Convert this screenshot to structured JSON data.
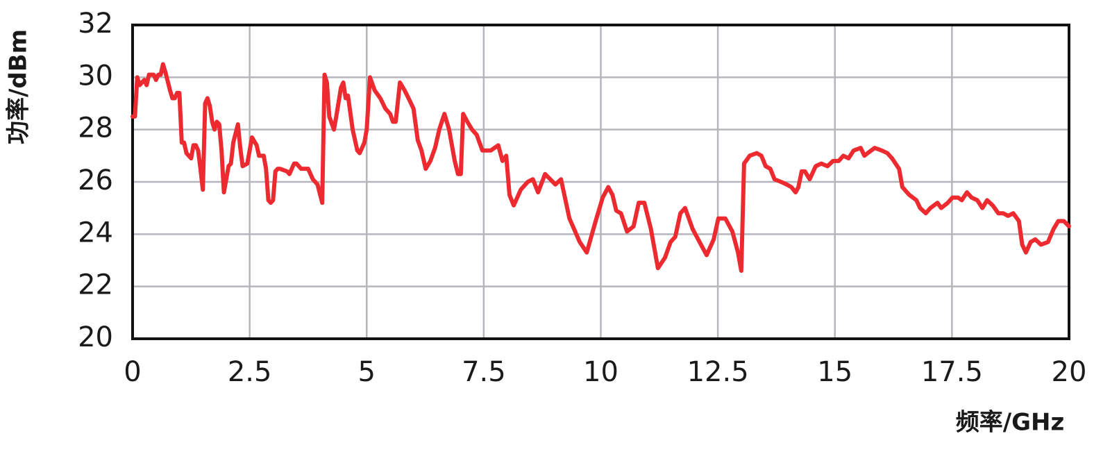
{
  "chart_data": {
    "type": "line",
    "xlabel": "频率/GHz",
    "ylabel": "功率/dBm",
    "xlim": [
      0,
      20
    ],
    "ylim": [
      20,
      32
    ],
    "xticks": [
      0,
      2.5,
      5,
      7.5,
      10,
      12.5,
      15,
      17.5,
      20
    ],
    "yticks": [
      20,
      22,
      24,
      26,
      28,
      30,
      32
    ],
    "grid": true,
    "series": [
      {
        "color": "#ee2a31",
        "x": [
          0,
          0.05,
          0.1,
          0.15,
          0.25,
          0.3,
          0.35,
          0.45,
          0.5,
          0.55,
          0.6,
          0.65,
          0.7,
          0.8,
          0.85,
          0.9,
          0.95,
          1.0,
          1.05,
          1.1,
          1.15,
          1.25,
          1.3,
          1.35,
          1.4,
          1.45,
          1.5,
          1.55,
          1.6,
          1.65,
          1.7,
          1.75,
          1.8,
          1.85,
          1.9,
          1.95,
          2.05,
          2.1,
          2.15,
          2.25,
          2.3,
          2.35,
          2.45,
          2.5,
          2.55,
          2.65,
          2.7,
          2.8,
          2.85,
          2.9,
          2.95,
          3.0,
          3.05,
          3.1,
          3.15,
          3.3,
          3.35,
          3.45,
          3.5,
          3.6,
          3.75,
          3.85,
          3.95,
          4.05,
          4.1,
          4.15,
          4.2,
          4.3,
          4.35,
          4.45,
          4.5,
          4.55,
          4.6,
          4.7,
          4.8,
          4.85,
          4.95,
          5.0,
          5.07,
          5.17,
          5.29,
          5.4,
          5.5,
          5.56,
          5.62,
          5.71,
          5.81,
          5.92,
          6.0,
          6.09,
          6.17,
          6.26,
          6.36,
          6.46,
          6.55,
          6.66,
          6.76,
          6.88,
          6.95,
          7.01,
          7.06,
          7.15,
          7.25,
          7.35,
          7.47,
          7.65,
          7.81,
          7.9,
          7.98,
          8.05,
          8.14,
          8.29,
          8.44,
          8.55,
          8.66,
          8.81,
          9.03,
          9.15,
          9.33,
          9.55,
          9.7,
          9.89,
          10.04,
          10.16,
          10.25,
          10.33,
          10.43,
          10.56,
          10.7,
          10.81,
          10.93,
          11.07,
          11.22,
          11.37,
          11.49,
          11.59,
          11.7,
          11.8,
          11.96,
          12.14,
          12.26,
          12.41,
          12.51,
          12.66,
          12.81,
          12.93,
          13.0,
          13.06,
          13.18,
          13.33,
          13.43,
          13.52,
          13.62,
          13.71,
          13.85,
          13.97,
          14.07,
          14.16,
          14.22,
          14.29,
          14.36,
          14.46,
          14.59,
          14.71,
          14.84,
          14.96,
          15.08,
          15.18,
          15.29,
          15.4,
          15.55,
          15.63,
          15.7,
          15.85,
          16.0,
          16.12,
          16.22,
          16.37,
          16.44,
          16.59,
          16.74,
          16.82,
          16.94,
          17.04,
          17.19,
          17.27,
          17.41,
          17.51,
          17.63,
          17.71,
          17.82,
          17.92,
          18.04,
          18.15,
          18.25,
          18.37,
          18.49,
          18.59,
          18.7,
          18.81,
          18.93,
          19.0,
          19.08,
          19.18,
          19.28,
          19.4,
          19.55,
          19.67,
          19.77,
          19.89,
          20.0
        ],
        "values": [
          28.5,
          28.5,
          30.0,
          29.7,
          29.9,
          29.7,
          30.1,
          30.1,
          29.9,
          30.1,
          30.1,
          30.5,
          30.2,
          29.5,
          29.2,
          29.2,
          29.4,
          29.4,
          27.5,
          27.5,
          27.1,
          26.9,
          27.4,
          27.4,
          27.2,
          26.5,
          25.7,
          29.0,
          29.2,
          28.9,
          28.3,
          28.0,
          28.3,
          28.2,
          27.2,
          25.6,
          26.6,
          26.7,
          27.5,
          28.2,
          27.3,
          26.6,
          26.7,
          27.2,
          27.7,
          27.4,
          27.0,
          27.0,
          26.5,
          25.3,
          25.2,
          25.3,
          26.4,
          26.5,
          26.5,
          26.4,
          26.3,
          26.7,
          26.7,
          26.5,
          26.5,
          26.1,
          25.9,
          25.2,
          30.1,
          29.8,
          28.5,
          28.0,
          28.5,
          29.6,
          29.8,
          29.2,
          29.3,
          28.0,
          27.2,
          27.1,
          27.5,
          28.0,
          30.0,
          29.5,
          29.2,
          28.8,
          28.6,
          28.3,
          28.3,
          29.8,
          29.5,
          29.1,
          28.8,
          27.6,
          27.2,
          26.5,
          26.8,
          27.3,
          28.0,
          28.6,
          28.0,
          26.8,
          26.3,
          26.3,
          28.6,
          28.3,
          28.0,
          27.8,
          27.2,
          27.2,
          27.4,
          26.8,
          27.0,
          25.5,
          25.1,
          25.7,
          26.0,
          26.1,
          25.6,
          26.3,
          25.9,
          26.1,
          24.6,
          23.7,
          23.3,
          24.5,
          25.4,
          25.8,
          25.5,
          24.9,
          24.8,
          24.1,
          24.3,
          25.2,
          25.2,
          24.2,
          22.7,
          23.1,
          23.7,
          23.9,
          24.8,
          25.0,
          24.2,
          23.6,
          23.2,
          23.8,
          24.6,
          24.6,
          24.1,
          23.3,
          22.6,
          26.7,
          27.0,
          27.1,
          27.0,
          26.6,
          26.5,
          26.1,
          26.0,
          25.9,
          25.8,
          25.6,
          25.8,
          26.4,
          26.4,
          26.1,
          26.6,
          26.7,
          26.6,
          26.8,
          26.8,
          27.0,
          26.9,
          27.2,
          27.3,
          27.0,
          27.1,
          27.3,
          27.2,
          27.1,
          26.9,
          26.5,
          25.8,
          25.5,
          25.3,
          25.0,
          24.8,
          25.0,
          25.2,
          25.0,
          25.2,
          25.4,
          25.4,
          25.3,
          25.6,
          25.4,
          25.3,
          25.0,
          25.3,
          25.1,
          24.8,
          24.8,
          24.7,
          24.8,
          24.5,
          23.6,
          23.3,
          23.7,
          23.8,
          23.6,
          23.7,
          24.2,
          24.5,
          24.5,
          24.3
        ]
      }
    ]
  }
}
